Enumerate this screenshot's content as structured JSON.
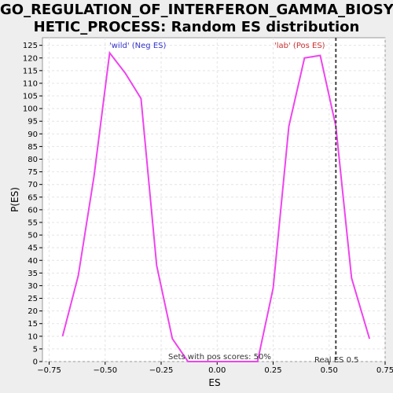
{
  "chart_data": {
    "type": "line",
    "title_line1": "GO_REGULATION_OF_INTERFERON_GAMMA_BIOSYNT",
    "title_line2": "HETIC_PROCESS: Random ES distribution",
    "xlabel": "ES",
    "ylabel": "P(ES)",
    "xlim": [
      -0.78,
      0.75
    ],
    "ylim": [
      0,
      128
    ],
    "x_ticks": [
      -0.75,
      -0.5,
      -0.25,
      0.0,
      0.25,
      0.5,
      0.75
    ],
    "x_tick_labels": [
      "−0.75",
      "−0.50",
      "−0.25",
      "0.00",
      "0.25",
      "0.50",
      "0.75"
    ],
    "y_ticks": [
      0,
      5,
      10,
      15,
      20,
      25,
      30,
      35,
      40,
      45,
      50,
      55,
      60,
      65,
      70,
      75,
      80,
      85,
      90,
      95,
      100,
      105,
      110,
      115,
      120,
      125
    ],
    "grid": true,
    "series": [
      {
        "color": "#ee44ee",
        "x": [
          -0.69,
          -0.62,
          -0.55,
          -0.48,
          -0.41,
          -0.34,
          -0.27,
          -0.2,
          -0.13,
          -0.06,
          0.01,
          0.08,
          0.15,
          0.18,
          0.25,
          0.32,
          0.39,
          0.46,
          0.53,
          0.6,
          0.68
        ],
        "y": [
          10,
          34,
          73,
          122,
          114,
          104,
          38,
          9,
          0,
          0,
          0,
          0,
          0,
          0,
          29,
          93,
          120,
          121,
          93,
          33,
          9
        ]
      }
    ],
    "real_es": 0.53,
    "annotations": {
      "wild": "'wild' (Neg ES)",
      "lab": "'lab' (Pos ES)",
      "pos_scores": "Sets with pos scores: 50%",
      "real_es_label": "Real ES 0.5"
    },
    "colors": {
      "wild": "#3333cc",
      "lab": "#cc3333",
      "line": "#ee44ee",
      "real_es": "#444444"
    }
  }
}
